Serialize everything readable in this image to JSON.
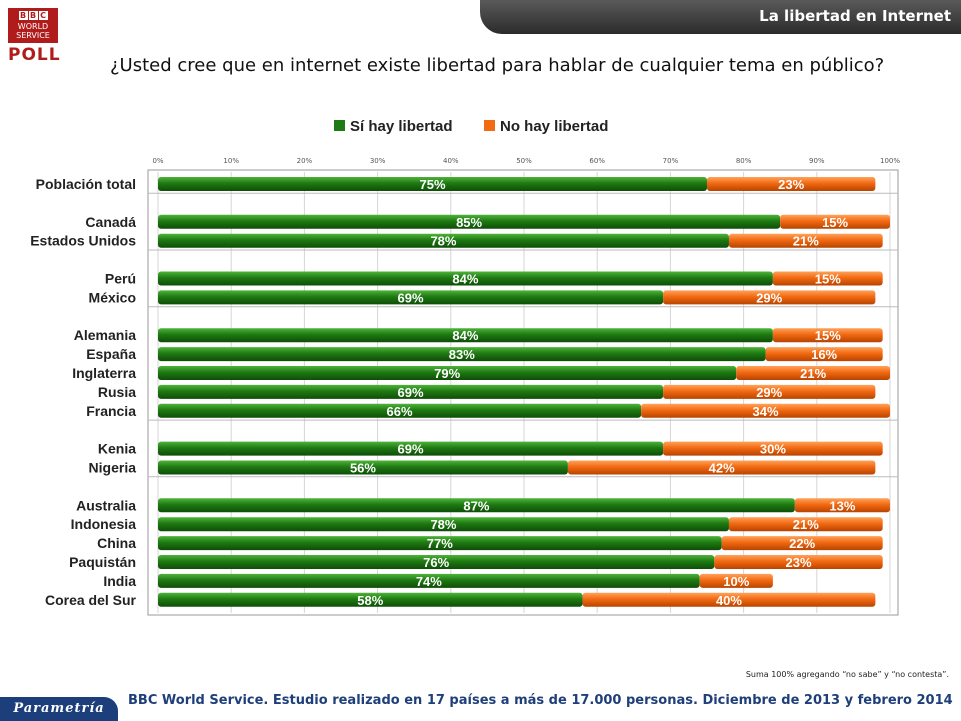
{
  "header": {
    "title": "La libertad en Internet"
  },
  "logo": {
    "b1": "B",
    "b2": "B",
    "b3": "C",
    "line1": "WORLD",
    "line2": "SERVICE",
    "poll": "POLL"
  },
  "question": "¿Usted cree que en internet existe libertad para hablar de cualquier tema en público?",
  "footer": {
    "note": "Suma 100%  agregando “no sabe” y “no contesta”.",
    "source": "BBC World Service. Estudio realizado en 17 países  a más de 17.000 personas. Diciembre de 2013 y febrero 2014",
    "brand": "Parametría"
  },
  "colors": {
    "si": "#1e7a12",
    "no": "#f26a12"
  },
  "chart_data": {
    "type": "bar",
    "orientation": "horizontal",
    "stacked": true,
    "xlim": [
      0,
      100
    ],
    "ticks": [
      "0%",
      "10%",
      "20%",
      "30%",
      "40%",
      "50%",
      "60%",
      "70%",
      "80%",
      "90%",
      "100%"
    ],
    "legend_position": "top",
    "grid": true,
    "categories": [
      "Población total",
      "Canadá",
      "Estados Unidos",
      "Perú",
      "México",
      "Alemania",
      "España",
      "Inglaterra",
      "Rusia",
      "Francia",
      "Kenia",
      "Nigeria",
      "Australia",
      "Indonesia",
      "China",
      "Paquistán",
      "India",
      "Corea del Sur"
    ],
    "groups": [
      [
        0
      ],
      [
        1,
        2
      ],
      [
        3,
        4
      ],
      [
        5,
        6,
        7,
        8,
        9
      ],
      [
        10,
        11
      ],
      [
        12,
        13,
        14,
        15,
        16,
        17
      ]
    ],
    "series": [
      {
        "name": "Sí hay libertad",
        "values": [
          75,
          85,
          78,
          84,
          69,
          84,
          83,
          79,
          69,
          66,
          69,
          56,
          87,
          78,
          77,
          76,
          74,
          58
        ],
        "labels": [
          "75%",
          "85%",
          "78%",
          "84%",
          "69%",
          "84%",
          "83%",
          "79%",
          "69%",
          "66%",
          "69%",
          "56%",
          "87%",
          "78%",
          "77%",
          "76%",
          "74%",
          "58%"
        ]
      },
      {
        "name": "No hay libertad",
        "values": [
          23,
          15,
          21,
          15,
          29,
          15,
          16,
          21,
          29,
          34,
          30,
          42,
          13,
          21,
          22,
          23,
          10,
          40
        ],
        "labels": [
          "23%",
          "15%",
          "21%",
          "15%",
          "29%",
          "15%",
          "16%",
          "21%",
          "29%",
          "34%",
          "30%",
          "42%",
          "13%",
          "21%",
          "22%",
          "23%",
          "10%",
          "40%"
        ]
      }
    ]
  }
}
